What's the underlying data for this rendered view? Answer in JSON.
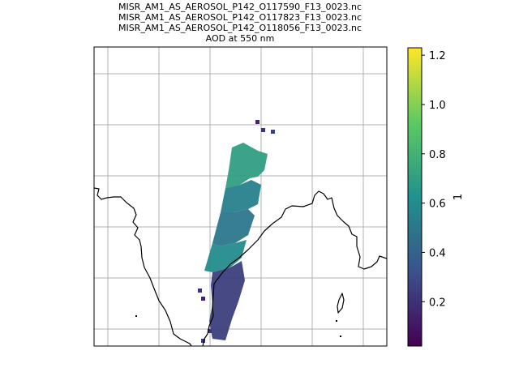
{
  "chart_data": {
    "type": "heatmap",
    "title_lines": [
      "MISR_AM1_AS_AEROSOL_P142_O117590_F13_0023.nc",
      "MISR_AM1_AS_AEROSOL_P142_O117823_F13_0023.nc",
      "MISR_AM1_AS_AEROSOL_P142_O118056_F13_0023.nc",
      "AOD at 550 nm"
    ],
    "colorbar": {
      "label": "1",
      "vmin": 0.02,
      "vmax": 1.23,
      "ticks": [
        0.2,
        0.4,
        0.6,
        0.8,
        1.0,
        1.2
      ],
      "tick_labels": [
        "0.2",
        "0.4",
        "0.6",
        "0.8",
        "1.0",
        "1.2"
      ],
      "colormap": "viridis",
      "colormap_stops": [
        "#440154",
        "#3b528b",
        "#21918c",
        "#5ec962",
        "#fde725"
      ]
    },
    "map": {
      "grid": true,
      "coastline_color": "#000000",
      "grid_color": "#b0b0b0"
    },
    "swath": {
      "segments": [
        {
          "part": "north",
          "aod": 0.7
        },
        {
          "part": "upper-middle",
          "aod": 0.55
        },
        {
          "part": "middle",
          "aod": 0.5
        },
        {
          "part": "lower-middle",
          "aod": 0.6
        },
        {
          "part": "south",
          "aod": 0.25
        }
      ]
    }
  }
}
